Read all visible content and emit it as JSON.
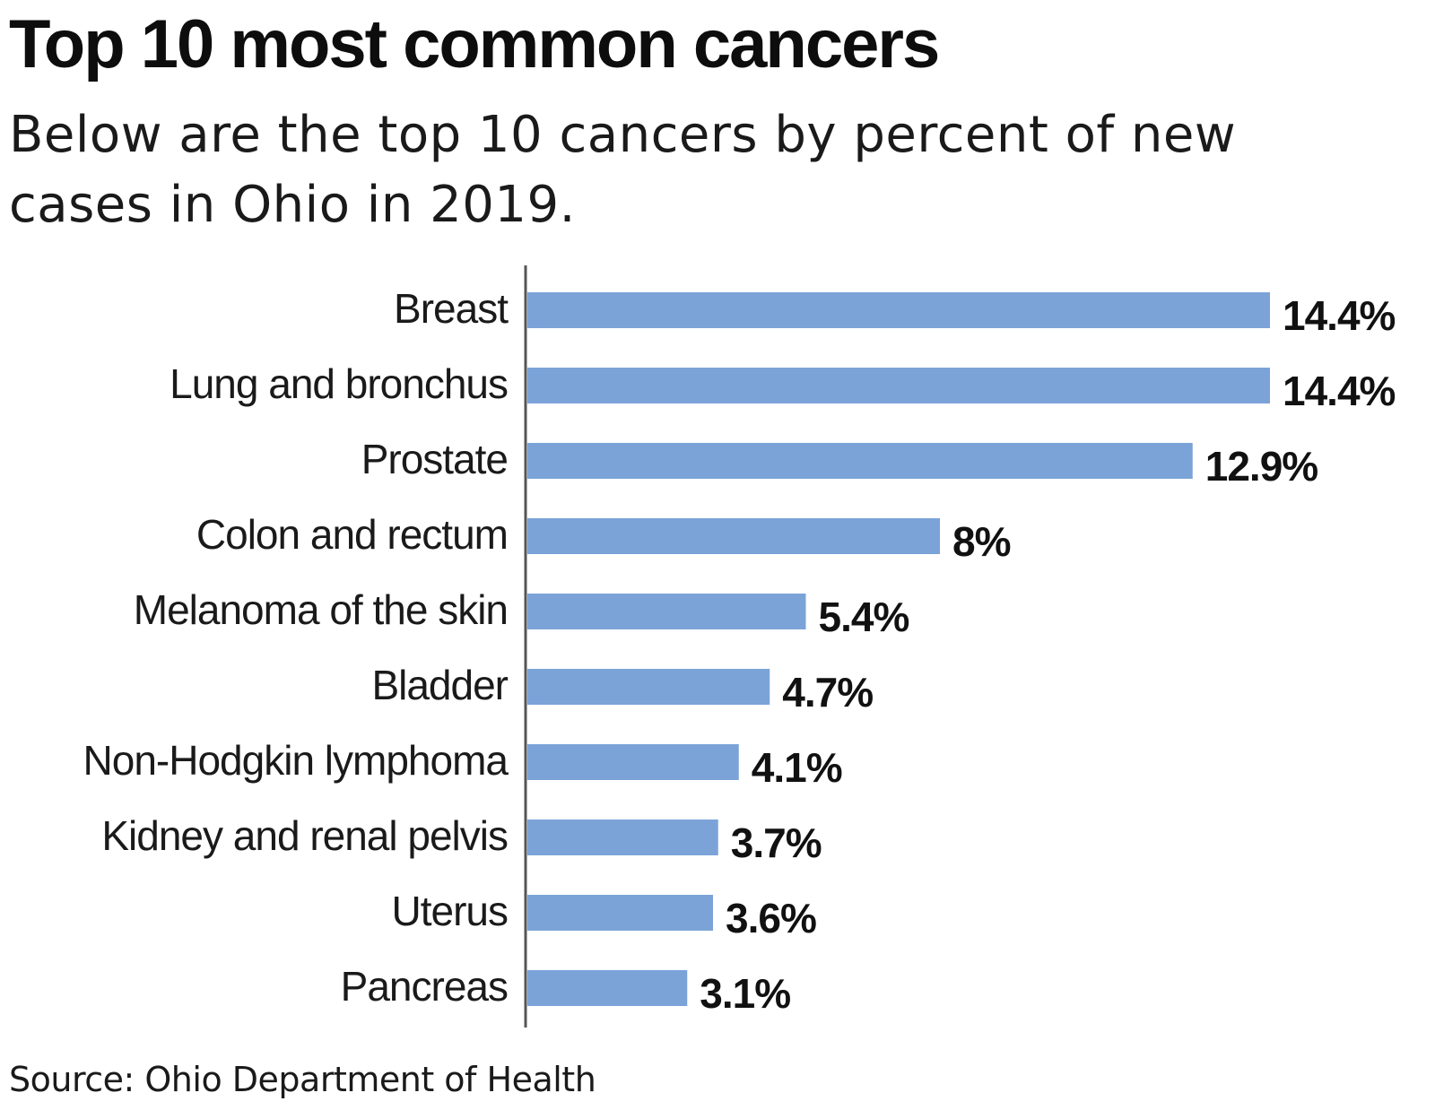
{
  "title": "Top 10 most common cancers",
  "subtitle": "Below are the top 10 cancers by percent of new cases in Ohio in 2019.",
  "source": "Source: Ohio Department of Health",
  "colors": {
    "bar": "#7ba3d8",
    "axis": "#555555"
  },
  "chart_data": {
    "type": "bar",
    "orientation": "horizontal",
    "title": "Top 10 most common cancers",
    "subtitle": "Below are the top 10 cancers by percent of new cases in Ohio in 2019.",
    "xlabel": "",
    "ylabel": "",
    "grid": false,
    "legend": "none",
    "xlim": [
      0,
      14.4
    ],
    "categories": [
      "Breast",
      "Lung and bronchus",
      "Prostate",
      "Colon and rectum",
      "Melanoma of the skin",
      "Bladder",
      "Non-Hodgkin lymphoma",
      "Kidney and renal pelvis",
      "Uterus",
      "Pancreas"
    ],
    "values": [
      14.4,
      14.4,
      12.9,
      8,
      5.4,
      4.7,
      4.1,
      3.7,
      3.6,
      3.1
    ],
    "value_labels": [
      "14.4%",
      "14.4%",
      "12.9%",
      "8%",
      "5.4%",
      "4.7%",
      "4.1%",
      "3.7%",
      "3.6%",
      "3.1%"
    ]
  }
}
